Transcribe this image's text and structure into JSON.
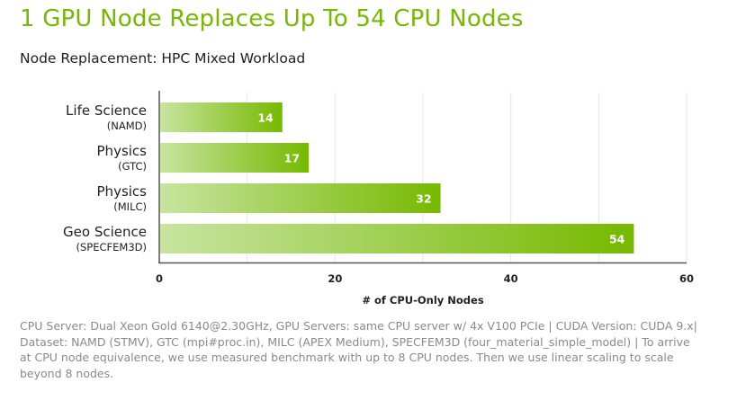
{
  "header": {
    "title": "1 GPU Node Replaces Up To 54 CPU Nodes",
    "subtitle": "Node Replacement: HPC Mixed Workload"
  },
  "chart_data": {
    "type": "bar",
    "orientation": "horizontal",
    "categories": [
      {
        "name": "Life Science",
        "sub": "(NAMD)"
      },
      {
        "name": "Physics",
        "sub": "(GTC)"
      },
      {
        "name": "Physics",
        "sub": "(MILC)"
      },
      {
        "name": "Geo Science",
        "sub": "(SPECFEM3D)"
      }
    ],
    "values": [
      14,
      17,
      32,
      54
    ],
    "xlabel": "# of CPU-Only Nodes",
    "xlim": [
      0,
      60
    ],
    "xticks": [
      0,
      20,
      40,
      60
    ],
    "grid_step": 10,
    "grid": true,
    "colors": {
      "bar_start": "#c8e4a0",
      "bar_end": "#76b900",
      "title": "#76b900"
    }
  },
  "footnote": "CPU Server: Dual Xeon Gold 6140@2.30GHz, GPU Servers: same CPU server w/ 4x V100  PCIe | CUDA Version: CUDA 9.x| Dataset: NAMD (STMV), GTC (mpi#proc.in), MILC (APEX Medium), SPECFEM3D (four_material_simple_model) | To arrive at CPU node equivalence, we use measured benchmark with up to 8 CPU nodes. Then we use linear scaling to scale beyond 8 nodes."
}
